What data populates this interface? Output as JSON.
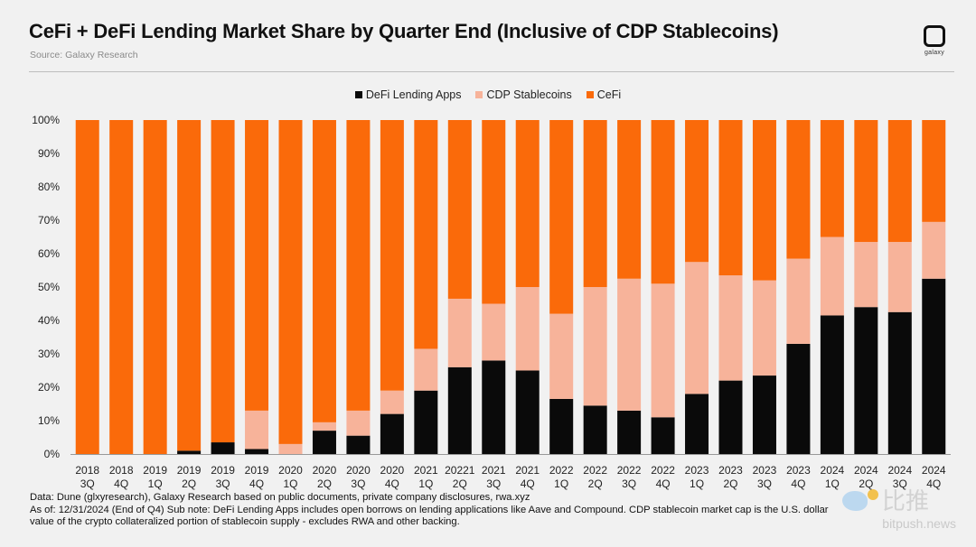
{
  "header": {
    "title": "CeFi + DeFi Lending Market Share by Quarter End (Inclusive of CDP Stablecoins)",
    "source": "Source: Galaxy Research",
    "logo_text": "galaxy"
  },
  "colors": {
    "defi": "#0a0a0a",
    "cdp": "#f7b39a",
    "cefi": "#fa6a0a",
    "background": "#f1f1f1"
  },
  "chart_data": {
    "type": "bar",
    "stacked": true,
    "percent_axis": true,
    "ylim": [
      0,
      100
    ],
    "yticks": [
      "0%",
      "10%",
      "20%",
      "30%",
      "40%",
      "50%",
      "60%",
      "70%",
      "80%",
      "90%",
      "100%"
    ],
    "legend_position": "top-center",
    "categories": [
      [
        "2018",
        "3Q"
      ],
      [
        "2018",
        "4Q"
      ],
      [
        "2019",
        "1Q"
      ],
      [
        "2019",
        "2Q"
      ],
      [
        "2019",
        "3Q"
      ],
      [
        "2019",
        "4Q"
      ],
      [
        "2020",
        "1Q"
      ],
      [
        "2020",
        "2Q"
      ],
      [
        "2020",
        "3Q"
      ],
      [
        "2020",
        "4Q"
      ],
      [
        "2021",
        "1Q"
      ],
      [
        "20221",
        "2Q"
      ],
      [
        "2021",
        "3Q"
      ],
      [
        "2021",
        "4Q"
      ],
      [
        "2022",
        "1Q"
      ],
      [
        "2022",
        "2Q"
      ],
      [
        "2022",
        "3Q"
      ],
      [
        "2022",
        "4Q"
      ],
      [
        "2023",
        "1Q"
      ],
      [
        "2023",
        "2Q"
      ],
      [
        "2023",
        "3Q"
      ],
      [
        "2023",
        "4Q"
      ],
      [
        "2024",
        "1Q"
      ],
      [
        "2024",
        "2Q"
      ],
      [
        "2024",
        "3Q"
      ],
      [
        "2024",
        "4Q"
      ]
    ],
    "series": [
      {
        "name": "DeFi Lending Apps",
        "values": [
          0,
          0,
          0,
          1,
          3.5,
          1.5,
          0,
          7,
          5.5,
          12,
          19,
          26,
          28,
          25,
          16.5,
          14.5,
          13,
          11,
          18,
          22,
          23.5,
          33,
          41.5,
          44,
          42.5,
          52.5
        ]
      },
      {
        "name": "CDP Stablecoins",
        "values": [
          0,
          0,
          0,
          0,
          0,
          11.5,
          3,
          2.5,
          7.5,
          7,
          12.5,
          20.5,
          17,
          25,
          25.5,
          35.5,
          39.5,
          40,
          39.5,
          31.5,
          28.5,
          25.5,
          23.5,
          19.5,
          21,
          17
        ]
      },
      {
        "name": "CeFi",
        "values": [
          100,
          100,
          100,
          99,
          96.5,
          87,
          97,
          90.5,
          87,
          81,
          68.5,
          53.5,
          55,
          50,
          58,
          50,
          47.5,
          49,
          42.5,
          46.5,
          48,
          41.5,
          35,
          36.5,
          36.5,
          30.5
        ]
      }
    ]
  },
  "notes": {
    "line1": "Data: Dune (glxyresearch), Galaxy Research based on public documents, private company disclosures, rwa.xyz",
    "line2": "As of: 12/31/2024 (End of Q4)   Sub note: DeFi Lending Apps includes open borrows on lending applications like Aave and Compound. CDP stablecoin market cap is the U.S. dollar",
    "line3": "value of the crypto collateralized portion of stablecoin supply - excludes RWA and other backing."
  },
  "watermark": {
    "cn": "比推",
    "url": "bitpush.news"
  }
}
